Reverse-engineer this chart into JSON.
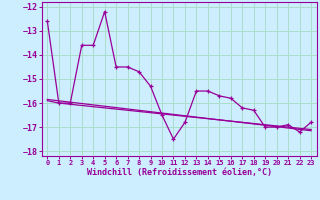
{
  "xlabel": "Windchill (Refroidissement éolien,°C)",
  "background_color": "#cceeff",
  "grid_color": "#aaddcc",
  "line_color": "#990099",
  "xlim": [
    -0.5,
    23.5
  ],
  "ylim": [
    -18.2,
    -11.8
  ],
  "yticks": [
    -18,
    -17,
    -16,
    -15,
    -14,
    -13,
    -12
  ],
  "xticks": [
    0,
    1,
    2,
    3,
    4,
    5,
    6,
    7,
    8,
    9,
    10,
    11,
    12,
    13,
    14,
    15,
    16,
    17,
    18,
    19,
    20,
    21,
    22,
    23
  ],
  "line1_x": [
    0,
    1,
    2,
    3,
    4,
    5,
    6,
    7,
    8,
    9,
    10,
    11,
    12,
    13,
    14,
    15,
    16,
    17,
    18,
    19,
    20,
    21,
    22,
    23
  ],
  "line1_y": [
    -12.6,
    -16.0,
    -16.0,
    -13.6,
    -13.6,
    -12.2,
    -14.5,
    -14.5,
    -14.7,
    -15.3,
    -16.5,
    -17.5,
    -16.8,
    -15.5,
    -15.5,
    -15.7,
    -15.8,
    -16.2,
    -16.3,
    -17.0,
    -17.0,
    -16.9,
    -17.2,
    -16.8
  ],
  "line2_x": [
    0,
    1,
    2,
    3,
    4,
    5,
    6,
    7,
    8,
    9,
    10,
    11,
    12,
    13,
    14,
    15,
    16,
    17,
    18,
    19,
    20,
    21,
    22,
    23
  ],
  "line2_y": [
    -15.9,
    -16.0,
    -16.05,
    -16.1,
    -16.15,
    -16.2,
    -16.25,
    -16.3,
    -16.35,
    -16.4,
    -16.45,
    -16.5,
    -16.55,
    -16.6,
    -16.65,
    -16.7,
    -16.75,
    -16.8,
    -16.85,
    -16.9,
    -16.95,
    -17.0,
    -17.05,
    -17.1
  ],
  "line3_x": [
    0,
    23
  ],
  "line3_y": [
    -15.85,
    -17.15
  ]
}
